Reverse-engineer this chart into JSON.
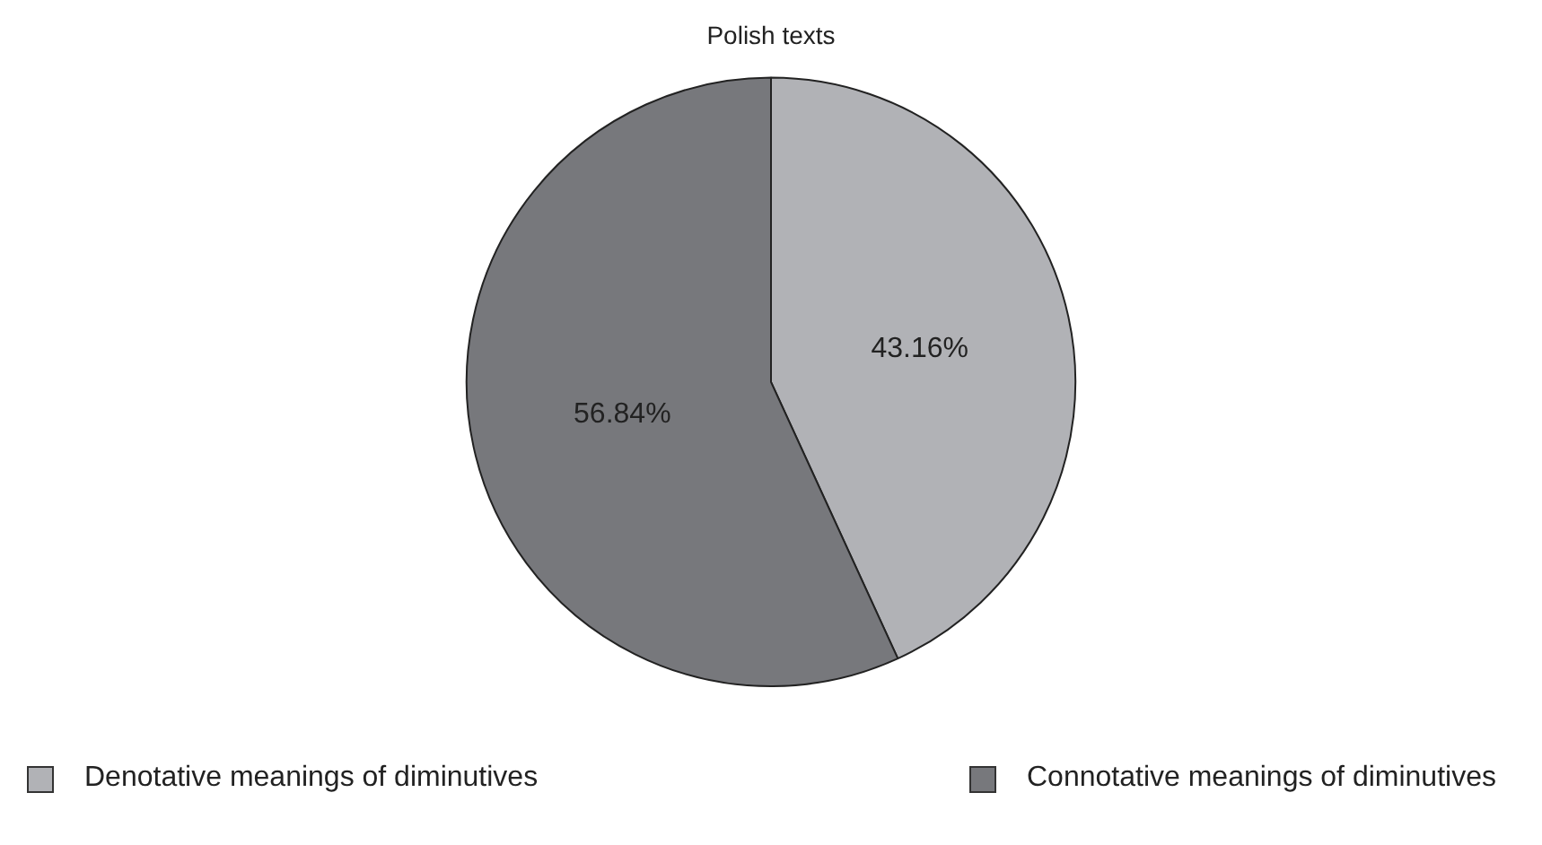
{
  "chart_data": {
    "type": "pie",
    "title": "Polish texts",
    "categories": [
      "Denotative meanings of diminutives",
      "Connotative meanings of diminutives"
    ],
    "values": [
      43.16,
      56.84
    ],
    "colors": [
      "#b1b2b6",
      "#77787c"
    ],
    "value_labels": [
      "43.16%",
      "56.84%"
    ],
    "legend": "bottom"
  }
}
